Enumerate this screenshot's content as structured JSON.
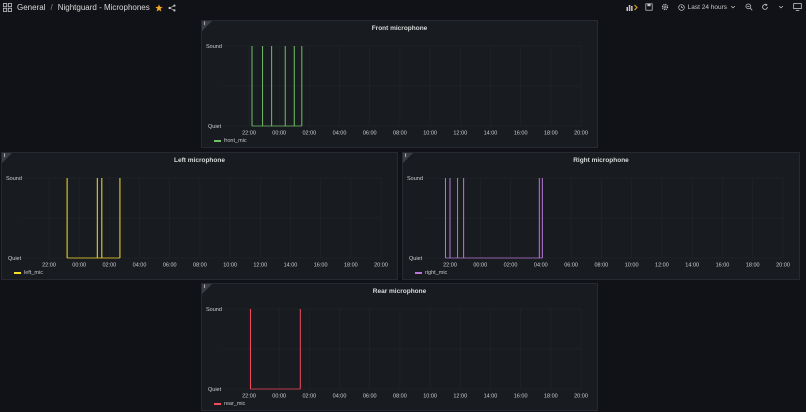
{
  "header": {
    "folder": "General",
    "separator": "/",
    "dashboard_title": "Nightguard - Microphones",
    "time_range": "Last 24 hours"
  },
  "panels": [
    {
      "id": "front",
      "title": "Front microphone",
      "y_top_label": "Sound",
      "y_bottom_label": "Quiet",
      "x_ticks": [
        "22:00",
        "00:00",
        "02:00",
        "04:00",
        "06:00",
        "08:00",
        "10:00",
        "12:00",
        "14:00",
        "16:00",
        "18:00",
        "20:00"
      ],
      "series": "front_mic",
      "color": "#73bf69",
      "events": [
        22.2,
        22.9,
        23.5,
        24.4,
        25.0,
        25.5
      ]
    },
    {
      "id": "left",
      "title": "Left microphone",
      "y_top_label": "Sound",
      "y_bottom_label": "Quiet",
      "x_ticks": [
        "22:00",
        "00:00",
        "02:00",
        "04:00",
        "06:00",
        "08:00",
        "10:00",
        "12:00",
        "14:00",
        "16:00",
        "18:00",
        "20:00"
      ],
      "series": "left_mic",
      "color": "#fade2a",
      "events": [
        23.2,
        25.2,
        25.5,
        26.7
      ]
    },
    {
      "id": "right",
      "title": "Right microphone",
      "y_top_label": "Sound",
      "y_bottom_label": "Quiet",
      "x_ticks": [
        "22:00",
        "00:00",
        "02:00",
        "04:00",
        "06:00",
        "08:00",
        "10:00",
        "12:00",
        "14:00",
        "16:00",
        "18:00",
        "20:00"
      ],
      "series": "right_mic",
      "color": "#b877d9",
      "events": [
        21.7,
        22.0,
        22.5,
        22.9,
        27.9,
        28.1
      ]
    },
    {
      "id": "rear",
      "title": "Rear microphone",
      "y_top_label": "Sound",
      "y_bottom_label": "Quiet",
      "x_ticks": [
        "22:00",
        "00:00",
        "02:00",
        "04:00",
        "06:00",
        "08:00",
        "10:00",
        "12:00",
        "14:00",
        "16:00",
        "18:00",
        "20:00"
      ],
      "series": "rear_mic",
      "color": "#f2495c",
      "events": [
        22.1,
        25.4
      ]
    }
  ]
}
